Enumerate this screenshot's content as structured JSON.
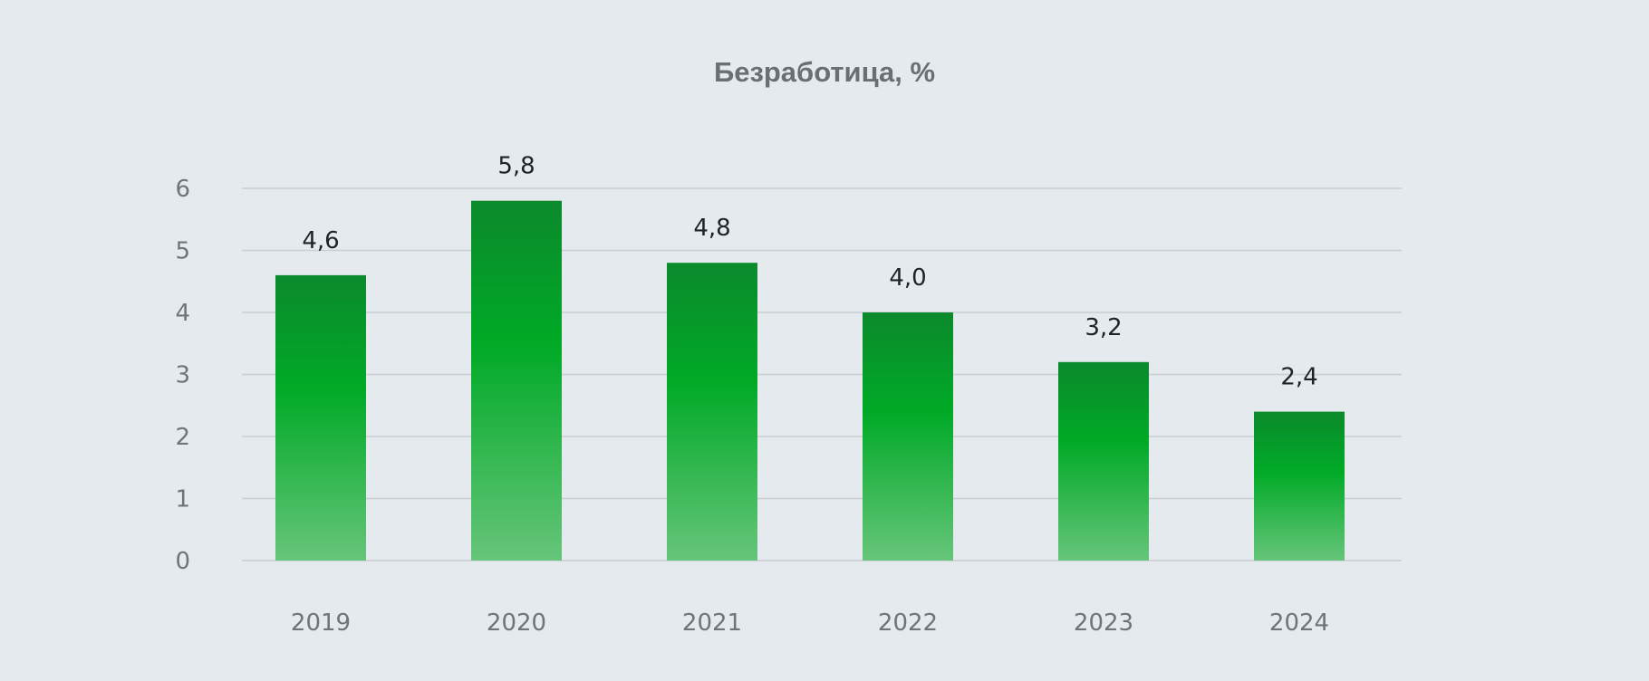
{
  "chart_data": {
    "type": "bar",
    "title": "Безработица, %",
    "categories": [
      "2019",
      "2020",
      "2021",
      "2022",
      "2023",
      "2024"
    ],
    "values": [
      4.6,
      5.8,
      4.8,
      4.0,
      3.2,
      2.4
    ],
    "value_labels": [
      "4,6",
      "5,8",
      "4,8",
      "4,0",
      "3,2",
      "2,4"
    ],
    "ylim": [
      0,
      6
    ],
    "yticks": [
      "0",
      "1",
      "2",
      "3",
      "4",
      "5",
      "6"
    ],
    "xlabel": "",
    "ylabel": "",
    "grid": true,
    "legend": "none",
    "colors": {
      "bar_top": "#0b8a2c",
      "bar_mid": "#00aa26",
      "bar_bottom": "#66c57a",
      "background": "#e5eaee",
      "grid": "#c9ced3"
    }
  }
}
